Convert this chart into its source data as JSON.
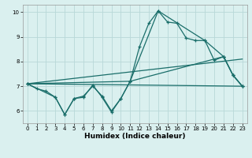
{
  "xlabel": "Humidex (Indice chaleur)",
  "background_color": "#daf0ef",
  "grid_color": "#b8d8d8",
  "line_color": "#1a6e6a",
  "xlim": [
    -0.5,
    23.5
  ],
  "ylim": [
    5.5,
    10.3
  ],
  "yticks": [
    6,
    7,
    8,
    9,
    10
  ],
  "xticks": [
    0,
    1,
    2,
    3,
    4,
    5,
    6,
    7,
    8,
    9,
    10,
    11,
    12,
    13,
    14,
    15,
    16,
    17,
    18,
    19,
    20,
    21,
    22,
    23
  ],
  "line1_x": [
    0,
    1,
    2,
    3,
    4,
    5,
    6,
    7,
    8,
    9,
    10,
    11,
    12,
    13,
    14,
    15,
    16,
    17,
    18,
    19,
    20,
    21,
    22,
    23
  ],
  "line1_y": [
    7.1,
    6.9,
    6.8,
    6.55,
    5.85,
    6.5,
    6.6,
    7.0,
    6.6,
    6.0,
    6.5,
    7.2,
    8.6,
    9.55,
    10.05,
    9.6,
    9.55,
    8.95,
    8.85,
    8.85,
    8.05,
    8.2,
    7.45,
    7.0
  ],
  "line2_x": [
    0,
    3,
    4,
    5,
    6,
    7,
    8,
    9,
    10,
    11,
    21,
    22,
    23
  ],
  "line2_y": [
    7.1,
    6.55,
    5.85,
    6.5,
    6.55,
    7.05,
    6.55,
    5.95,
    6.5,
    7.2,
    8.2,
    7.45,
    7.0
  ],
  "line3_x": [
    0,
    11,
    14,
    19,
    21,
    22,
    23
  ],
  "line3_y": [
    7.1,
    7.2,
    10.05,
    8.85,
    8.2,
    7.45,
    7.0
  ],
  "line4_x": [
    0,
    23
  ],
  "line4_y": [
    7.1,
    8.1
  ],
  "line5_x": [
    0,
    23
  ],
  "line5_y": [
    7.1,
    7.0
  ]
}
